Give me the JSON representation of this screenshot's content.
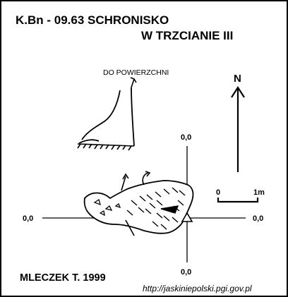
{
  "title": {
    "line1": "K.Bn - 09.63  SCHRONISKO",
    "line2": "W TRZCIANIE III"
  },
  "labels": {
    "surface": "DO POWIERZCHNI",
    "north": "N",
    "scale_zero": "0",
    "scale_one": "1m",
    "coord_top": "0,0",
    "coord_bottom": "0,0",
    "coord_left": "0,0",
    "coord_right": "0,0"
  },
  "footer": {
    "author": "MLECZEK  T.  1999",
    "url": "http://jaskiniepolski.pgi.gov.pl"
  },
  "colors": {
    "ink": "#000000",
    "paper": "#ffffff"
  }
}
